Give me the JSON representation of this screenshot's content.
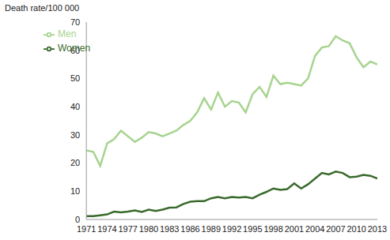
{
  "chart_data": {
    "type": "line",
    "y_label": "Death rate/100 000",
    "x": [
      1971,
      1972,
      1973,
      1974,
      1975,
      1976,
      1977,
      1978,
      1979,
      1980,
      1981,
      1982,
      1983,
      1984,
      1985,
      1986,
      1987,
      1988,
      1989,
      1990,
      1991,
      1992,
      1993,
      1994,
      1995,
      1996,
      1997,
      1998,
      1999,
      2000,
      2001,
      2002,
      2003,
      2004,
      2005,
      2006,
      2007,
      2008,
      2009,
      2010,
      2011,
      2012,
      2013
    ],
    "series": [
      {
        "name": "Men",
        "color": "#a6d48e",
        "values": [
          24.5,
          24,
          19,
          27,
          28.5,
          31.5,
          29.5,
          27.5,
          29,
          31,
          30.5,
          29.5,
          30.5,
          31.5,
          33.5,
          35,
          38,
          43,
          39,
          45,
          40,
          42,
          41.5,
          38,
          44.5,
          47,
          43.5,
          51,
          48,
          48.5,
          48,
          47.5,
          50,
          58,
          61,
          61.5,
          65,
          63.5,
          62.5,
          57.5,
          54,
          56,
          55
        ]
      },
      {
        "name": "Women",
        "color": "#3a6a2c",
        "values": [
          1.2,
          1.2,
          1.5,
          1.8,
          2.8,
          2.5,
          2.8,
          3.2,
          2.7,
          3.5,
          3,
          3.5,
          4.2,
          4.3,
          5.5,
          6.3,
          6.5,
          6.5,
          7.5,
          8,
          7.5,
          8,
          7.8,
          8,
          7.5,
          8.8,
          9.8,
          11,
          10.5,
          10.8,
          12.8,
          11,
          12.5,
          14.5,
          16.5,
          16,
          17,
          16.5,
          15,
          15.2,
          15.8,
          15.5,
          14.5
        ]
      }
    ],
    "xlim": [
      1971,
      2013
    ],
    "xticks": [
      1971,
      1974,
      1977,
      1980,
      1983,
      1986,
      1989,
      1992,
      1995,
      1998,
      2001,
      2004,
      2007,
      2010,
      2013
    ],
    "ylim": [
      0,
      70
    ],
    "yticks": [
      0,
      10,
      20,
      30,
      40,
      50,
      60,
      70
    ],
    "grid": false,
    "legend": "upper left"
  }
}
